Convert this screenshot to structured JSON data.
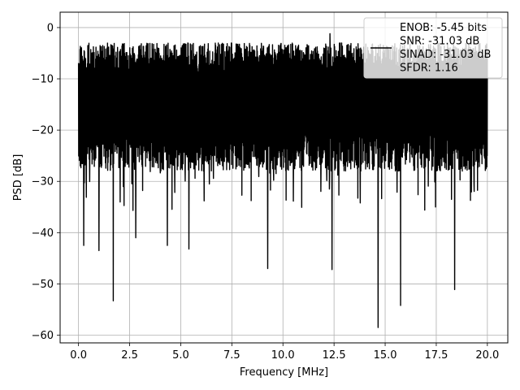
{
  "chart_data": {
    "type": "line",
    "title": "",
    "xlabel": "Frequency [MHz]",
    "ylabel": "PSD [dB]",
    "xlim": [
      -0.9,
      21.0
    ],
    "ylim": [
      -61.5,
      3.0
    ],
    "xticks": [
      0.0,
      2.5,
      5.0,
      7.5,
      10.0,
      12.5,
      15.0,
      17.5,
      20.0
    ],
    "xtick_labels": [
      "0.0",
      "2.5",
      "5.0",
      "7.5",
      "10.0",
      "12.5",
      "15.0",
      "17.5",
      "20.0"
    ],
    "yticks": [
      0,
      -10,
      -20,
      -30,
      -40,
      -50,
      -60
    ],
    "ytick_labels": [
      "0",
      "−10",
      "−20",
      "−30",
      "−40",
      "−50",
      "−60"
    ],
    "grid": true,
    "legend_position": "top-right",
    "legend_entries": [
      "ENOB: -5.45 bits",
      "SNR: -31.03 dB",
      "SINAD: -31.03 dB",
      "SFDR: 1.16"
    ],
    "series": [
      {
        "color": "#000000",
        "x_range": [
          0.0,
          20.0
        ],
        "noise_floor_dB": [
          -28,
          -3
        ],
        "peak_dB": -1.2,
        "notable_dips": [
          {
            "x": 0.25,
            "y": -42.5
          },
          {
            "x": 1.0,
            "y": -43.5
          },
          {
            "x": 1.7,
            "y": -53.3
          },
          {
            "x": 2.8,
            "y": -41.0
          },
          {
            "x": 4.35,
            "y": -42.5
          },
          {
            "x": 5.4,
            "y": -43.2
          },
          {
            "x": 9.25,
            "y": -47.0
          },
          {
            "x": 12.4,
            "y": -47.2
          },
          {
            "x": 14.65,
            "y": -58.5
          },
          {
            "x": 15.75,
            "y": -54.2
          },
          {
            "x": 18.4,
            "y": -51.1
          }
        ]
      }
    ]
  }
}
